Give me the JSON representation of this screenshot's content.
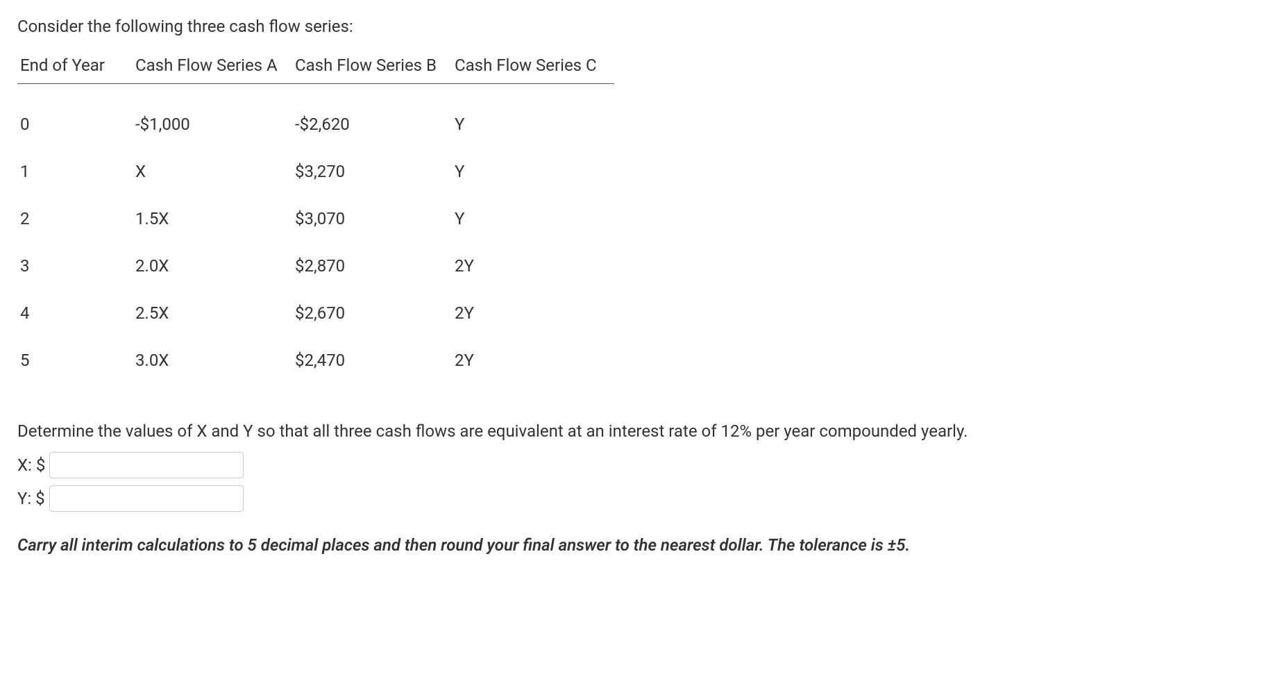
{
  "intro": "Consider the following three cash flow series:",
  "table": {
    "headers": {
      "year": "End of Year",
      "seriesA": "Cash Flow Series A",
      "seriesB": "Cash Flow Series B",
      "seriesC": "Cash Flow Series C"
    },
    "rows": [
      {
        "year": "0",
        "a": "-$1,000",
        "b": "-$2,620",
        "c": "Y"
      },
      {
        "year": "1",
        "a": "X",
        "b": "$3,270",
        "c": "Y"
      },
      {
        "year": "2",
        "a": "1.5X",
        "b": "$3,070",
        "c": "Y"
      },
      {
        "year": "3",
        "a": "2.0X",
        "b": "$2,870",
        "c": "2Y"
      },
      {
        "year": "4",
        "a": "2.5X",
        "b": "$2,670",
        "c": "2Y"
      },
      {
        "year": "5",
        "a": "3.0X",
        "b": "$2,470",
        "c": "2Y"
      }
    ]
  },
  "question": "Determine the values of X and Y so that all three cash flows are equivalent at an interest rate of 12% per year compounded yearly.",
  "inputs": {
    "x_label": "X: $",
    "y_label": "Y: $",
    "x_value": "",
    "y_value": ""
  },
  "footnote": "Carry all interim calculations to 5 decimal places and then round your final answer to the nearest dollar. The tolerance is ±5."
}
